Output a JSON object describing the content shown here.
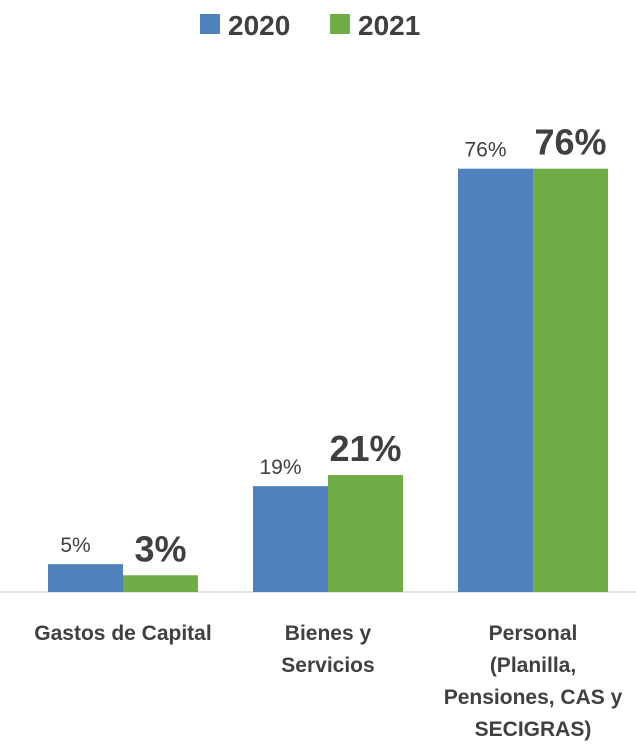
{
  "chart_data": {
    "type": "bar",
    "categories": [
      "Gastos de Capital",
      "Bienes y\nServicios",
      "Personal\n(Planilla,\nPensiones, CAS y\nSECIGRAS)"
    ],
    "series": [
      {
        "name": "2020",
        "color": "#4f81bd",
        "values": [
          5,
          19,
          76
        ],
        "value_labels": [
          "5%",
          "19%",
          "76%"
        ]
      },
      {
        "name": "2021",
        "color": "#70ad47",
        "values": [
          3,
          21,
          76
        ],
        "value_labels": [
          "3%",
          "21%",
          "76%"
        ]
      }
    ],
    "legend": "top"
  }
}
